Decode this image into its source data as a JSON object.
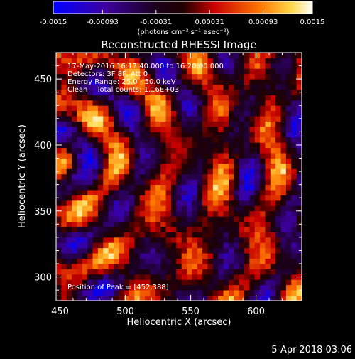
{
  "chart_data": {
    "type": "heatmap",
    "title": "Reconstructed RHESSI Image",
    "xlabel": "Heliocentric X (arcsec)",
    "ylabel": "Heliocentric Y (arcsec)",
    "xlim": [
      447,
      635
    ],
    "ylim": [
      282,
      470
    ],
    "x_ticks": [
      450,
      500,
      550,
      600
    ],
    "y_ticks": [
      300,
      350,
      400,
      450
    ],
    "colorbar": {
      "min": -0.0015,
      "max": 0.0015,
      "tick_values": [
        -0.0015,
        -0.00093,
        -0.00031,
        0.00031,
        0.00093,
        0.0015
      ],
      "tick_labels": [
        "-0.0015",
        "-0.00093",
        "-0.00031",
        "0.00031",
        "0.00093",
        "0.0015"
      ],
      "unit_label": "(photons cm⁻² s⁻¹ asec⁻²)",
      "colormap": [
        "#0000ff",
        "#4b0082",
        "#000000",
        "#ff0000",
        "#ffa500",
        "#ffffff"
      ]
    },
    "annotations": {
      "line1": "17-May-2016 16:17:40.000 to 16:20:00.000",
      "line2": "Detectors: 3F 8F, Att 0",
      "line3": "Energy Range: 25.0 - 50.0 keV",
      "line4": "Clean    Total counts: 1.16E+03",
      "peak": "Position of Peak = [452,388]"
    },
    "peak": {
      "x": 452,
      "y": 388
    },
    "pixel_size_arcsec": 4,
    "grid": false
  },
  "footer": {
    "date": "5-Apr-2018 03:06"
  }
}
